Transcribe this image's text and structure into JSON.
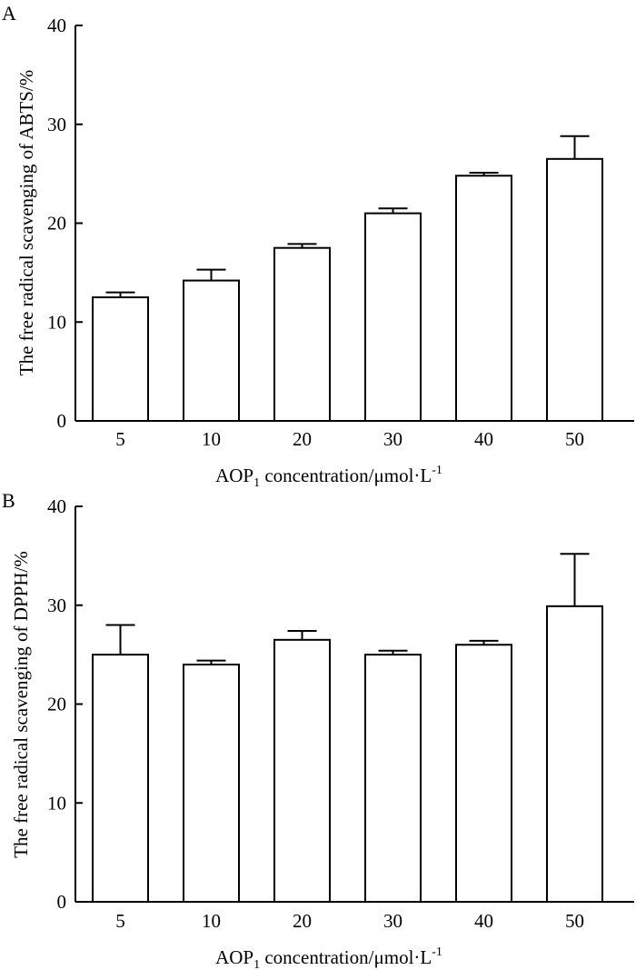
{
  "chart_data": [
    {
      "type": "bar",
      "panel_label": "A",
      "categories": [
        "5",
        "10",
        "20",
        "30",
        "40",
        "50"
      ],
      "values": [
        12.5,
        14.2,
        17.5,
        21.0,
        24.8,
        26.5
      ],
      "error_upper": [
        0.5,
        1.1,
        0.4,
        0.5,
        0.3,
        2.3
      ],
      "ylim": [
        0,
        40
      ],
      "yticks": [
        "0",
        "10",
        "20",
        "30",
        "40"
      ],
      "ytick_values": [
        0,
        10,
        20,
        30,
        40
      ],
      "ylabel": "The free radical scavenging of ABTS/%",
      "xlabel": {
        "prefix": "AOP",
        "subscript": "1",
        "middle": " concentration/μmol·L",
        "superscript": "-1"
      }
    },
    {
      "type": "bar",
      "panel_label": "B",
      "categories": [
        "5",
        "10",
        "20",
        "30",
        "40",
        "50"
      ],
      "values": [
        25.0,
        24.0,
        26.5,
        25.0,
        26.0,
        29.9
      ],
      "error_upper": [
        3.0,
        0.4,
        0.9,
        0.4,
        0.4,
        5.3
      ],
      "ylim": [
        0,
        40
      ],
      "yticks": [
        "0",
        "10",
        "20",
        "30",
        "40"
      ],
      "ytick_values": [
        0,
        10,
        20,
        30,
        40
      ],
      "ylabel": "The free radical scavenging of DPPH/%",
      "xlabel": {
        "prefix": "AOP",
        "subscript": "1",
        "middle": " concentration/μmol·L",
        "superscript": "-1"
      }
    }
  ]
}
